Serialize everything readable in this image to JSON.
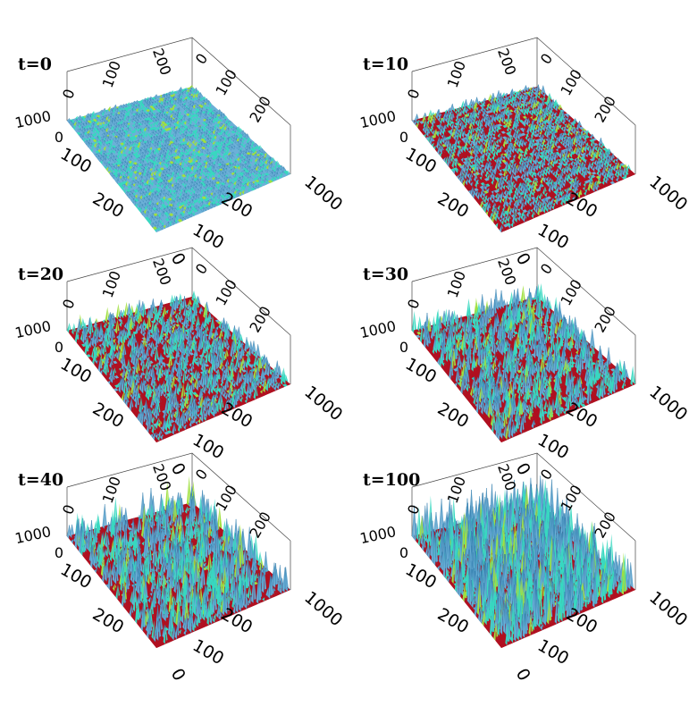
{
  "colors": {
    "surface_low": "#b01020",
    "surface_mid": "#6cb0d8",
    "surface_high": "#38d8c0",
    "surface_peak": "#a0e040",
    "axis_line": "#444444"
  },
  "chart_data": [
    {
      "type": "surface3d",
      "title": "t=0",
      "axes": {
        "x_ticks": [
          "0",
          "100",
          "200"
        ],
        "y_ticks": [
          "0",
          "100",
          "200"
        ],
        "z_ticks": [
          "0",
          "1000"
        ],
        "back_x_ticks": [
          "0",
          "100",
          "200"
        ],
        "back_y_ticks": [
          "0",
          "100",
          "200"
        ],
        "z_range": [
          0,
          1000
        ]
      },
      "red_fraction": 0.0,
      "spike_level": 0.06
    },
    {
      "type": "surface3d",
      "title": "t=10",
      "axes": {
        "x_ticks": [
          "0",
          "100",
          "200"
        ],
        "y_ticks": [
          "0",
          "100",
          "200"
        ],
        "z_ticks": [
          "0",
          "1000"
        ],
        "back_x_ticks": [
          "0",
          "100",
          "200"
        ],
        "back_y_ticks": [
          "0",
          "100",
          "200"
        ],
        "z_range": [
          0,
          1000
        ]
      },
      "red_fraction": 0.35,
      "spike_level": 0.12
    },
    {
      "type": "surface3d",
      "title": "t=20",
      "axes": {
        "x_ticks": [
          "0",
          "100",
          "200"
        ],
        "y_ticks": [
          "0",
          "100",
          "200"
        ],
        "z_ticks": [
          "0",
          "1000"
        ],
        "back_x_ticks": [
          "0",
          "100",
          "200"
        ],
        "back_y_ticks": [
          "0",
          "100",
          "200"
        ],
        "z_range": [
          0,
          1000
        ]
      },
      "red_fraction": 0.55,
      "spike_level": 0.22
    },
    {
      "type": "surface3d",
      "title": "t=30",
      "axes": {
        "x_ticks": [
          "0",
          "100",
          "200"
        ],
        "y_ticks": [
          "0",
          "100",
          "200"
        ],
        "z_ticks": [
          "0",
          "1000"
        ],
        "back_x_ticks": [
          "0",
          "100",
          "200"
        ],
        "back_y_ticks": [
          "0",
          "100",
          "200"
        ],
        "z_range": [
          0,
          1000
        ]
      },
      "red_fraction": 0.6,
      "spike_level": 0.3
    },
    {
      "type": "surface3d",
      "title": "t=40",
      "axes": {
        "x_ticks": [
          "0",
          "100",
          "200"
        ],
        "y_ticks": [
          "0",
          "100",
          "200"
        ],
        "z_ticks": [
          "0",
          "1000"
        ],
        "back_x_ticks": [
          "0",
          "100",
          "200"
        ],
        "back_y_ticks": [
          "0",
          "100",
          "200"
        ],
        "z_range": [
          0,
          1000
        ]
      },
      "red_fraction": 0.62,
      "spike_level": 0.42
    },
    {
      "type": "surface3d",
      "title": "t=100",
      "axes": {
        "x_ticks": [
          "0",
          "100",
          "200"
        ],
        "y_ticks": [
          "0",
          "100",
          "200"
        ],
        "z_ticks": [
          "0",
          "1000"
        ],
        "back_x_ticks": [
          "0",
          "100",
          "200"
        ],
        "back_y_ticks": [
          "0",
          "100",
          "200"
        ],
        "z_range": [
          0,
          1000
        ]
      },
      "red_fraction": 0.5,
      "spike_level": 0.55
    }
  ]
}
